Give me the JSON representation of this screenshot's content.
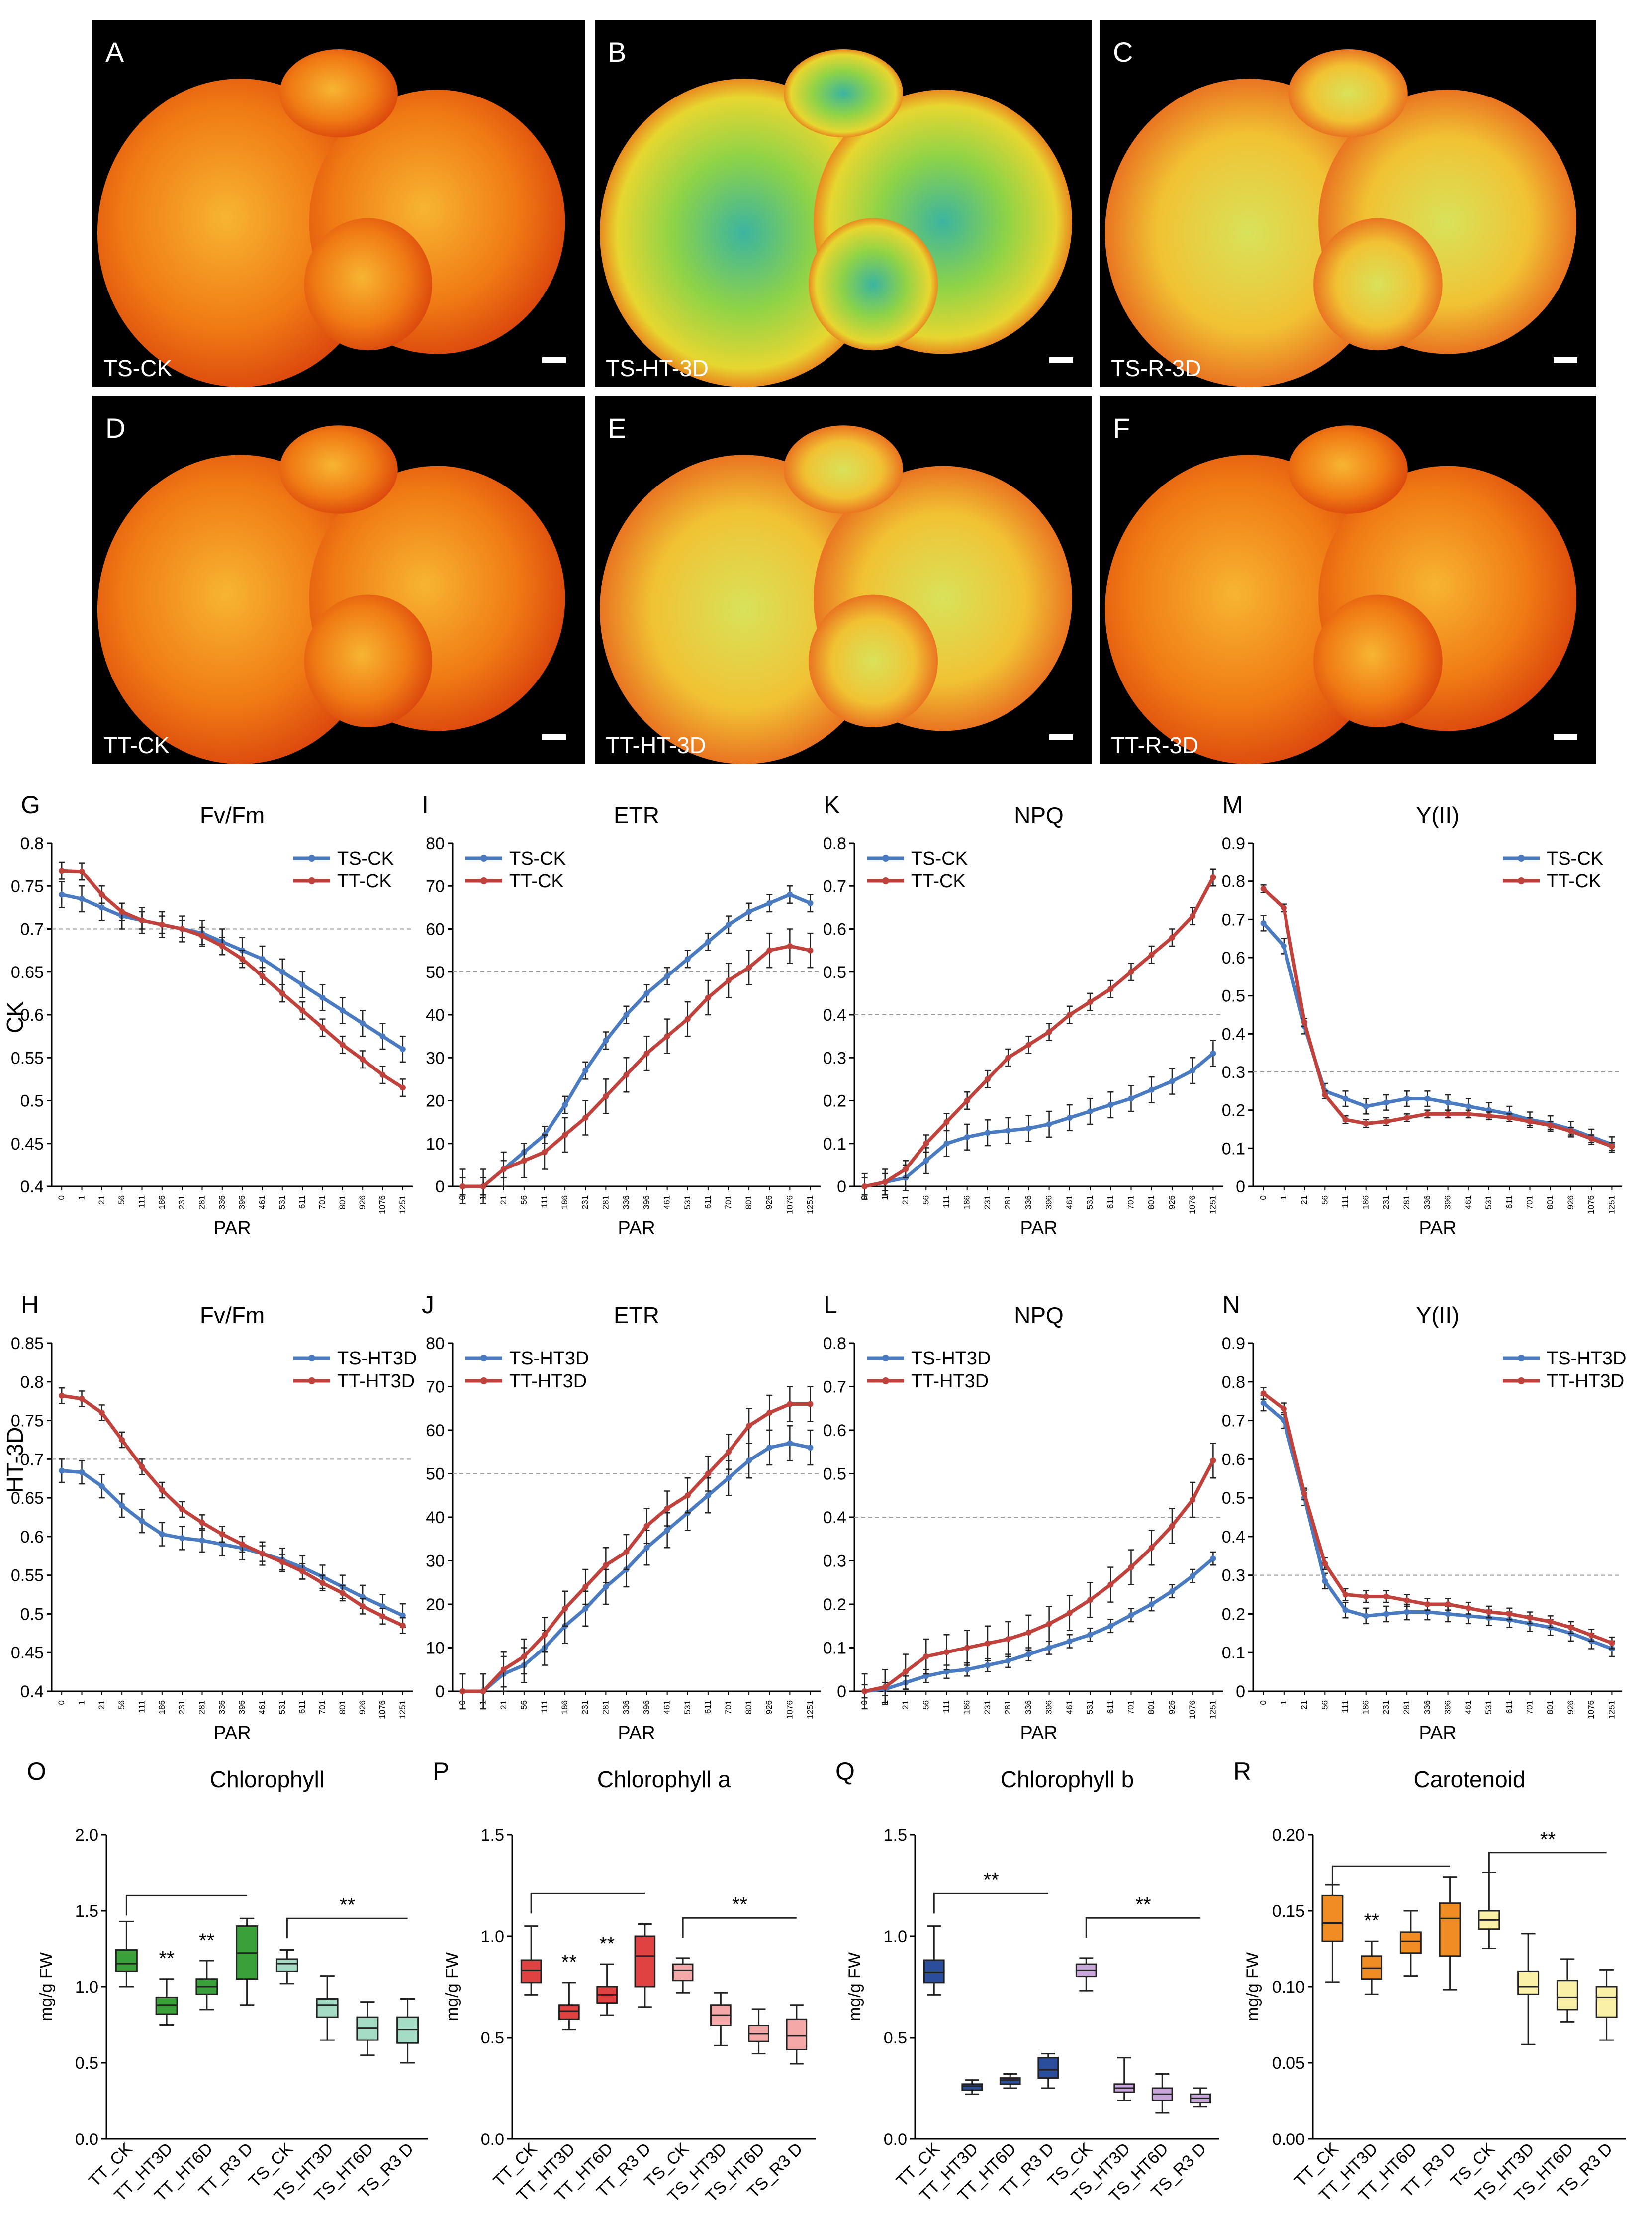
{
  "photo_panels": [
    {
      "letter": "A",
      "label": "TS-CK",
      "tone": "orange"
    },
    {
      "letter": "B",
      "label": "TS-HT-3D",
      "tone": "green"
    },
    {
      "letter": "C",
      "label": "TS-R-3D",
      "tone": "yellow"
    },
    {
      "letter": "D",
      "label": "TT-CK",
      "tone": "orange"
    },
    {
      "letter": "E",
      "label": "TT-HT-3D",
      "tone": "yellow"
    },
    {
      "letter": "F",
      "label": "TT-R-3D",
      "tone": "orange"
    }
  ],
  "row_labels": {
    "ck": "CK",
    "ht": "HT-3D"
  },
  "colors": {
    "ts": "#4a7bc0",
    "tt": "#c0423c"
  },
  "par_ticks": [
    "0",
    "1",
    "21",
    "56",
    "111",
    "186",
    "231",
    "281",
    "336",
    "396",
    "461",
    "531",
    "611",
    "701",
    "801",
    "926",
    "1076",
    "1251"
  ],
  "chart_data": [
    {
      "letter": "G",
      "type": "line",
      "title": "Fv/Fm",
      "xlabel": "PAR",
      "ylim": [
        0.4,
        0.8
      ],
      "yticks": [
        "0.4",
        "0.45",
        "0.5",
        "0.55",
        "0.6",
        "0.65",
        "0.7",
        "0.75",
        "0.8"
      ],
      "ref": 0.7,
      "legend_pos": "top-right",
      "series": [
        {
          "name": "TS-CK",
          "color": "#4a7bc0",
          "values": [
            0.74,
            0.735,
            0.725,
            0.715,
            0.71,
            0.705,
            0.7,
            0.695,
            0.685,
            0.675,
            0.665,
            0.65,
            0.635,
            0.62,
            0.605,
            0.59,
            0.575,
            0.56
          ],
          "err": 0.015
        },
        {
          "name": "TT-CK",
          "color": "#c0423c",
          "values": [
            0.768,
            0.767,
            0.74,
            0.72,
            0.71,
            0.705,
            0.7,
            0.692,
            0.68,
            0.665,
            0.645,
            0.625,
            0.605,
            0.585,
            0.565,
            0.548,
            0.53,
            0.515
          ],
          "err": 0.01
        }
      ]
    },
    {
      "letter": "I",
      "type": "line",
      "title": "ETR",
      "xlabel": "PAR",
      "ylim": [
        0,
        80
      ],
      "yticks": [
        "0",
        "10",
        "20",
        "30",
        "40",
        "50",
        "60",
        "70",
        "80"
      ],
      "ref": 50,
      "legend_pos": "top-left",
      "series": [
        {
          "name": "TS-CK",
          "color": "#4a7bc0",
          "values": [
            0,
            0,
            4,
            8,
            12,
            19,
            27,
            34,
            40,
            45,
            49,
            53,
            57,
            61,
            64,
            66,
            68,
            66
          ],
          "err": 2
        },
        {
          "name": "TT-CK",
          "color": "#c0423c",
          "values": [
            0,
            0,
            4,
            6,
            8,
            12,
            16,
            21,
            26,
            31,
            35,
            39,
            44,
            48,
            51,
            55,
            56,
            55
          ],
          "err": 4
        }
      ]
    },
    {
      "letter": "K",
      "type": "line",
      "title": "NPQ",
      "xlabel": "PAR",
      "ylim": [
        0,
        0.8
      ],
      "yticks": [
        "0",
        "0.1",
        "0.2",
        "0.3",
        "0.4",
        "0.5",
        "0.6",
        "0.7",
        "0.8"
      ],
      "ref": 0.4,
      "legend_pos": "top-left",
      "series": [
        {
          "name": "TS-CK",
          "color": "#4a7bc0",
          "values": [
            0,
            0.01,
            0.02,
            0.06,
            0.1,
            0.115,
            0.125,
            0.13,
            0.135,
            0.145,
            0.16,
            0.175,
            0.19,
            0.205,
            0.225,
            0.245,
            0.27,
            0.31
          ],
          "err": 0.03
        },
        {
          "name": "TT-CK",
          "color": "#c0423c",
          "values": [
            0,
            0.01,
            0.04,
            0.1,
            0.15,
            0.2,
            0.25,
            0.3,
            0.33,
            0.36,
            0.4,
            0.43,
            0.46,
            0.5,
            0.54,
            0.58,
            0.63,
            0.72
          ],
          "err": 0.02
        }
      ]
    },
    {
      "letter": "M",
      "type": "line",
      "title": "Y(II)",
      "xlabel": "PAR",
      "ylim": [
        0,
        0.9
      ],
      "yticks": [
        "0",
        "0.1",
        "0.2",
        "0.3",
        "0.4",
        "0.5",
        "0.6",
        "0.7",
        "0.8",
        "0.9"
      ],
      "ref": 0.3,
      "legend_pos": "top-right",
      "series": [
        {
          "name": "TS-CK",
          "color": "#4a7bc0",
          "values": [
            0.69,
            0.63,
            0.42,
            0.25,
            0.23,
            0.21,
            0.22,
            0.23,
            0.23,
            0.22,
            0.21,
            0.2,
            0.19,
            0.175,
            0.165,
            0.15,
            0.13,
            0.11
          ],
          "err": 0.02
        },
        {
          "name": "TT-CK",
          "color": "#c0423c",
          "values": [
            0.78,
            0.73,
            0.43,
            0.24,
            0.175,
            0.165,
            0.17,
            0.18,
            0.19,
            0.19,
            0.19,
            0.185,
            0.18,
            0.17,
            0.16,
            0.145,
            0.125,
            0.105
          ],
          "err": 0.01
        }
      ]
    },
    {
      "letter": "H",
      "type": "line",
      "title": "Fv/Fm",
      "xlabel": "PAR",
      "ylim": [
        0.4,
        0.85
      ],
      "yticks": [
        "0.4",
        "0.45",
        "0.5",
        "0.55",
        "0.6",
        "0.65",
        "0.7",
        "0.75",
        "0.8",
        "0.85"
      ],
      "ref": 0.7,
      "legend_pos": "top-right",
      "series": [
        {
          "name": "TS-HT3D",
          "color": "#4a7bc0",
          "values": [
            0.685,
            0.683,
            0.665,
            0.64,
            0.62,
            0.603,
            0.598,
            0.595,
            0.59,
            0.585,
            0.578,
            0.57,
            0.56,
            0.548,
            0.535,
            0.522,
            0.51,
            0.498
          ],
          "err": 0.015
        },
        {
          "name": "TT-HT3D",
          "color": "#c0423c",
          "values": [
            0.782,
            0.778,
            0.76,
            0.725,
            0.69,
            0.66,
            0.635,
            0.618,
            0.603,
            0.59,
            0.578,
            0.567,
            0.555,
            0.54,
            0.527,
            0.51,
            0.497,
            0.485
          ],
          "err": 0.01
        }
      ]
    },
    {
      "letter": "J",
      "type": "line",
      "title": "ETR",
      "xlabel": "PAR",
      "ylim": [
        0,
        80
      ],
      "yticks": [
        "0",
        "10",
        "20",
        "30",
        "40",
        "50",
        "60",
        "70",
        "80"
      ],
      "ref": 50,
      "legend_pos": "top-left",
      "series": [
        {
          "name": "TS-HT3D",
          "color": "#4a7bc0",
          "values": [
            0,
            0,
            4,
            6,
            10,
            15,
            19,
            24,
            28,
            33,
            37,
            41,
            45,
            49,
            53,
            56,
            57,
            56
          ],
          "err": 4
        },
        {
          "name": "TT-HT3D",
          "color": "#c0423c",
          "values": [
            0,
            0,
            5,
            8,
            13,
            19,
            24,
            29,
            32,
            38,
            42,
            45,
            50,
            55,
            61,
            64,
            66,
            66
          ],
          "err": 4
        }
      ]
    },
    {
      "letter": "L",
      "type": "line",
      "title": "NPQ",
      "xlabel": "PAR",
      "ylim": [
        0,
        0.8
      ],
      "yticks": [
        "0",
        "0.1",
        "0.2",
        "0.3",
        "0.4",
        "0.5",
        "0.6",
        "0.7",
        "0.8"
      ],
      "ref": 0.4,
      "legend_pos": "top-left",
      "series": [
        {
          "name": "TS-HT3D",
          "color": "#4a7bc0",
          "values": [
            0,
            0.005,
            0.02,
            0.035,
            0.045,
            0.05,
            0.06,
            0.07,
            0.085,
            0.1,
            0.115,
            0.13,
            0.15,
            0.175,
            0.2,
            0.23,
            0.265,
            0.305
          ],
          "err": 0.015
        },
        {
          "name": "TT-HT3D",
          "color": "#c0423c",
          "values": [
            0,
            0.01,
            0.045,
            0.08,
            0.09,
            0.1,
            0.11,
            0.12,
            0.135,
            0.155,
            0.18,
            0.21,
            0.245,
            0.285,
            0.33,
            0.38,
            0.44,
            0.53
          ],
          "err": 0.04
        }
      ]
    },
    {
      "letter": "N",
      "type": "line",
      "title": "Y(II)",
      "xlabel": "PAR",
      "ylim": [
        0,
        0.9
      ],
      "yticks": [
        "0",
        "0.1",
        "0.2",
        "0.3",
        "0.4",
        "0.5",
        "0.6",
        "0.7",
        "0.8",
        "0.9"
      ],
      "ref": 0.3,
      "legend_pos": "top-right",
      "series": [
        {
          "name": "TS-HT3D",
          "color": "#4a7bc0",
          "values": [
            0.745,
            0.7,
            0.5,
            0.285,
            0.21,
            0.195,
            0.2,
            0.205,
            0.205,
            0.2,
            0.195,
            0.19,
            0.185,
            0.175,
            0.165,
            0.15,
            0.13,
            0.11
          ],
          "err": 0.02
        },
        {
          "name": "TT-HT3D",
          "color": "#c0423c",
          "values": [
            0.77,
            0.73,
            0.51,
            0.33,
            0.25,
            0.245,
            0.245,
            0.235,
            0.225,
            0.225,
            0.215,
            0.205,
            0.2,
            0.19,
            0.18,
            0.165,
            0.145,
            0.125
          ],
          "err": 0.015
        }
      ]
    },
    {
      "letter": "O",
      "type": "box",
      "title": "Chlorophyll",
      "ylabel": "mg/g FW",
      "ylim": [
        0,
        2.0
      ],
      "yticks": [
        "0.0",
        "0.5",
        "1.0",
        "1.5",
        "2.0"
      ],
      "categories": [
        "TT_CK",
        "TT_HT3D",
        "TT_HT6D",
        "TT_R3 D",
        "TS_CK",
        "TS_HT3D",
        "TS_HT6D",
        "TS_R3 D"
      ],
      "boxes": [
        [
          1.0,
          1.1,
          1.15,
          1.24,
          1.43
        ],
        [
          0.75,
          0.82,
          0.88,
          0.93,
          1.05
        ],
        [
          0.85,
          0.95,
          1.0,
          1.05,
          1.17
        ],
        [
          0.88,
          1.05,
          1.22,
          1.4,
          1.45
        ],
        [
          1.02,
          1.1,
          1.15,
          1.18,
          1.24
        ],
        [
          0.65,
          0.8,
          0.88,
          0.92,
          1.07
        ],
        [
          0.55,
          0.65,
          0.73,
          0.8,
          0.9
        ],
        [
          0.5,
          0.63,
          0.72,
          0.8,
          0.92
        ]
      ],
      "colors": [
        "#3aa03a",
        "#3aa03a",
        "#3aa03a",
        "#3aa03a",
        "#a5dcc6",
        "#a5dcc6",
        "#a5dcc6",
        "#a5dcc6"
      ],
      "stars": [
        "**",
        "**"
      ],
      "star_idx": [
        1,
        2
      ],
      "brackets": [
        {
          "from": 0,
          "to": 3,
          "y": 1.6
        },
        {
          "from": 4,
          "to": 7,
          "y": 1.45,
          "label": "**"
        }
      ]
    },
    {
      "letter": "P",
      "type": "box",
      "title": "Chlorophyll a",
      "ylabel": "mg/g FW",
      "ylim": [
        0,
        1.5
      ],
      "yticks": [
        "0.0",
        "0.5",
        "1.0",
        "1.5"
      ],
      "categories": [
        "TT_CK",
        "TT_HT3D",
        "TT_HT6D",
        "TT_R3 D",
        "TS_CK",
        "TS_HT3D",
        "TS_HT6D",
        "TS_R3 D"
      ],
      "boxes": [
        [
          0.71,
          0.77,
          0.83,
          0.88,
          1.05
        ],
        [
          0.54,
          0.59,
          0.63,
          0.66,
          0.77
        ],
        [
          0.61,
          0.67,
          0.71,
          0.75,
          0.86
        ],
        [
          0.65,
          0.75,
          0.9,
          1.0,
          1.06
        ],
        [
          0.72,
          0.78,
          0.83,
          0.86,
          0.89
        ],
        [
          0.46,
          0.56,
          0.61,
          0.66,
          0.72
        ],
        [
          0.42,
          0.48,
          0.52,
          0.56,
          0.64
        ],
        [
          0.37,
          0.44,
          0.51,
          0.59,
          0.66
        ]
      ],
      "colors": [
        "#e04242",
        "#e04242",
        "#e04242",
        "#e04242",
        "#f4a8a8",
        "#f4a8a8",
        "#f4a8a8",
        "#f4a8a8"
      ],
      "stars": [
        "**",
        "**"
      ],
      "star_idx": [
        1,
        2
      ],
      "brackets": [
        {
          "from": 0,
          "to": 3,
          "y": 1.21
        },
        {
          "from": 4,
          "to": 7,
          "y": 1.09,
          "label": "**"
        }
      ]
    },
    {
      "letter": "Q",
      "type": "box",
      "title": "Chlorophyll b",
      "ylabel": "mg/g FW",
      "ylim": [
        0,
        1.5
      ],
      "yticks": [
        "0.0",
        "0.5",
        "1.0",
        "1.5"
      ],
      "categories": [
        "TT_CK",
        "TT_HT3D",
        "TT_HT6D",
        "TT_R3 D",
        "TS_CK",
        "TS_HT3D",
        "TS_HT6D",
        "TS_R3 D"
      ],
      "boxes": [
        [
          0.71,
          0.77,
          0.82,
          0.88,
          1.05
        ],
        [
          0.22,
          0.24,
          0.26,
          0.27,
          0.29
        ],
        [
          0.25,
          0.27,
          0.29,
          0.3,
          0.32
        ],
        [
          0.25,
          0.3,
          0.34,
          0.4,
          0.42
        ],
        [
          0.73,
          0.8,
          0.83,
          0.86,
          0.89
        ],
        [
          0.19,
          0.23,
          0.25,
          0.27,
          0.4
        ],
        [
          0.13,
          0.19,
          0.22,
          0.25,
          0.32
        ],
        [
          0.16,
          0.18,
          0.2,
          0.22,
          0.25
        ]
      ],
      "colors": [
        "#2a4e9c",
        "#2a4e9c",
        "#2a4e9c",
        "#2a4e9c",
        "#c9a6dc",
        "#c9a6dc",
        "#c9a6dc",
        "#c9a6dc"
      ],
      "stars": [],
      "star_idx": [],
      "brackets": [
        {
          "from": 0,
          "to": 3,
          "y": 1.21,
          "label": "**"
        },
        {
          "from": 4,
          "to": 7,
          "y": 1.09,
          "label": "**"
        }
      ]
    },
    {
      "letter": "R",
      "type": "box",
      "title": "Carotenoid",
      "ylabel": "mg/g FW",
      "ylim": [
        0,
        0.2
      ],
      "yticks": [
        "0.00",
        "0.05",
        "0.10",
        "0.15",
        "0.20"
      ],
      "categories": [
        "TT_CK",
        "TT_HT3D",
        "TT_HT6D",
        "TT_R3 D",
        "TS_CK",
        "TS_HT3D",
        "TS_HT6D",
        "TS_R3 D"
      ],
      "boxes": [
        [
          0.103,
          0.13,
          0.142,
          0.16,
          0.167
        ],
        [
          0.095,
          0.105,
          0.112,
          0.12,
          0.13
        ],
        [
          0.107,
          0.122,
          0.13,
          0.136,
          0.15
        ],
        [
          0.098,
          0.12,
          0.145,
          0.155,
          0.172
        ],
        [
          0.125,
          0.138,
          0.144,
          0.15,
          0.175
        ],
        [
          0.062,
          0.095,
          0.1,
          0.11,
          0.135
        ],
        [
          0.077,
          0.085,
          0.093,
          0.104,
          0.118
        ],
        [
          0.065,
          0.08,
          0.093,
          0.1,
          0.111
        ]
      ],
      "colors": [
        "#f08c24",
        "#f08c24",
        "#f08c24",
        "#f08c24",
        "#fbf0a8",
        "#fbf0a8",
        "#fbf0a8",
        "#fbf0a8"
      ],
      "stars": [
        "**"
      ],
      "star_idx": [
        1
      ],
      "brackets": [
        {
          "from": 0,
          "to": 3,
          "y": 0.179
        },
        {
          "from": 4,
          "to": 7,
          "y": 0.188,
          "label": "**"
        }
      ]
    }
  ]
}
